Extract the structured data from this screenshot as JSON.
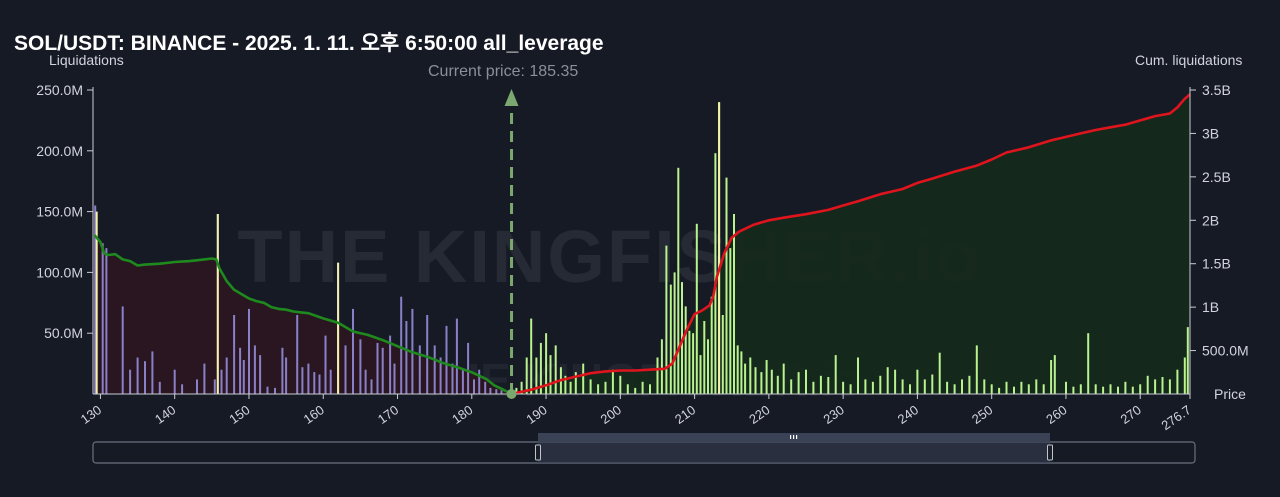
{
  "header": {
    "title": "SOL/USDT: BINANCE - 2025. 1. 11. 오후 6:50:00 all_leverage",
    "left_axis_title": "Liquidations",
    "right_axis_title": "Cum. liquidations",
    "current_price_label": "Current price: 185.35",
    "price_axis_label": "Price"
  },
  "colors": {
    "background": "#161a25",
    "short_cum_line": "#e0141c",
    "long_cum_line": "#1e8a1e",
    "short_fill": "#15291b",
    "long_fill": "#2b1620",
    "short_bars": "#b9f28e",
    "long_bars": "#8a80c8",
    "highlight_bars": "#f2f2a8",
    "current_price_marker": "#7aa86e"
  },
  "watermark": "THE KINGFISHER.io",
  "chart_data": {
    "type": "bar",
    "current_price": 185.35,
    "xlim": [
      129,
      276.7
    ],
    "y_left_lim": [
      0,
      250
    ],
    "y_right_lim": [
      0,
      3.5
    ],
    "x_ticks": [
      "130",
      "140",
      "150",
      "160",
      "170",
      "180",
      "190",
      "200",
      "210",
      "220",
      "230",
      "240",
      "250",
      "260",
      "270",
      "276.7"
    ],
    "y_left_ticks": [
      "50.0M",
      "100.0M",
      "150.0M",
      "200.0M",
      "250.0M"
    ],
    "y_left_tick_values": [
      50,
      100,
      150,
      200,
      250
    ],
    "y_right_ticks": [
      "500.0M",
      "1B",
      "1.5B",
      "2B",
      "2.5B",
      "3B",
      "3.5B"
    ],
    "y_right_tick_values": [
      0.5,
      1,
      1.5,
      2,
      2.5,
      3,
      3.5
    ],
    "long_cumulative": {
      "name": "",
      "x": [
        129.2,
        130,
        130.5,
        131,
        132,
        133,
        134,
        135,
        136,
        138,
        140,
        142,
        144,
        145,
        145.6,
        146,
        147,
        148,
        149,
        150,
        151,
        152,
        153,
        154,
        155,
        156,
        157,
        158,
        160,
        162,
        164,
        166,
        168,
        170,
        172,
        174,
        176,
        178,
        180,
        182,
        183,
        184,
        185.35
      ],
      "y": [
        1.83,
        1.75,
        1.62,
        1.6,
        1.61,
        1.55,
        1.53,
        1.48,
        1.49,
        1.5,
        1.52,
        1.53,
        1.55,
        1.56,
        1.55,
        1.45,
        1.3,
        1.2,
        1.15,
        1.1,
        1.07,
        1.05,
        1.0,
        0.98,
        0.97,
        0.95,
        0.94,
        0.93,
        0.87,
        0.82,
        0.72,
        0.68,
        0.62,
        0.55,
        0.48,
        0.43,
        0.36,
        0.31,
        0.25,
        0.17,
        0.1,
        0.06,
        0.0
      ]
    },
    "short_cumulative": {
      "name": "",
      "x": [
        185.35,
        188,
        190,
        192,
        194,
        196,
        198,
        200,
        202,
        204,
        206,
        207,
        208,
        209,
        210,
        211,
        212,
        212.5,
        213,
        214,
        215,
        216,
        218,
        220,
        222,
        225,
        228,
        230,
        232,
        235,
        238,
        240,
        242,
        245,
        248,
        250,
        252,
        255,
        258,
        260,
        262,
        264,
        266,
        268,
        270,
        272,
        274,
        275,
        276,
        276.7
      ],
      "y": [
        0,
        0.05,
        0.1,
        0.16,
        0.2,
        0.24,
        0.26,
        0.27,
        0.27,
        0.28,
        0.29,
        0.35,
        0.55,
        0.75,
        0.92,
        0.96,
        1.02,
        1.12,
        1.35,
        1.62,
        1.8,
        1.87,
        1.95,
        2.0,
        2.03,
        2.07,
        2.12,
        2.17,
        2.22,
        2.3,
        2.36,
        2.43,
        2.48,
        2.56,
        2.63,
        2.7,
        2.78,
        2.84,
        2.92,
        2.96,
        3.0,
        3.04,
        3.07,
        3.1,
        3.15,
        3.2,
        3.23,
        3.3,
        3.4,
        3.45
      ]
    },
    "long_bars": [
      {
        "x": 129.3,
        "v": 155
      },
      {
        "x": 130.3,
        "v": 124
      },
      {
        "x": 130.8,
        "v": 120
      },
      {
        "x": 133,
        "v": 72
      },
      {
        "x": 134,
        "v": 20
      },
      {
        "x": 135,
        "v": 30
      },
      {
        "x": 136,
        "v": 27
      },
      {
        "x": 137,
        "v": 35
      },
      {
        "x": 138,
        "v": 10
      },
      {
        "x": 140,
        "v": 20
      },
      {
        "x": 141,
        "v": 8
      },
      {
        "x": 143,
        "v": 12
      },
      {
        "x": 144,
        "v": 25
      },
      {
        "x": 145.4,
        "v": 12
      },
      {
        "x": 145.8,
        "v": 148
      },
      {
        "x": 146.3,
        "v": 20
      },
      {
        "x": 147,
        "v": 30
      },
      {
        "x": 148,
        "v": 65
      },
      {
        "x": 148.8,
        "v": 38
      },
      {
        "x": 149.3,
        "v": 28
      },
      {
        "x": 150,
        "v": 70
      },
      {
        "x": 150.8,
        "v": 40
      },
      {
        "x": 151.5,
        "v": 32
      },
      {
        "x": 152.5,
        "v": 6
      },
      {
        "x": 153.5,
        "v": 5
      },
      {
        "x": 154.5,
        "v": 38
      },
      {
        "x": 155,
        "v": 30
      },
      {
        "x": 156.5,
        "v": 65
      },
      {
        "x": 157.2,
        "v": 22
      },
      {
        "x": 158,
        "v": 25
      },
      {
        "x": 158.8,
        "v": 18
      },
      {
        "x": 159.5,
        "v": 16
      },
      {
        "x": 160.3,
        "v": 48
      },
      {
        "x": 161,
        "v": 20
      },
      {
        "x": 162,
        "v": 108
      },
      {
        "x": 163,
        "v": 40
      },
      {
        "x": 164,
        "v": 70
      },
      {
        "x": 165,
        "v": 45
      },
      {
        "x": 165.7,
        "v": 20
      },
      {
        "x": 166.5,
        "v": 12
      },
      {
        "x": 167.3,
        "v": 42
      },
      {
        "x": 168,
        "v": 38
      },
      {
        "x": 169,
        "v": 48
      },
      {
        "x": 169.6,
        "v": 25
      },
      {
        "x": 170.5,
        "v": 80
      },
      {
        "x": 171.2,
        "v": 60
      },
      {
        "x": 172,
        "v": 70
      },
      {
        "x": 173,
        "v": 40
      },
      {
        "x": 174,
        "v": 65
      },
      {
        "x": 175,
        "v": 40
      },
      {
        "x": 175.8,
        "v": 30
      },
      {
        "x": 176.6,
        "v": 56
      },
      {
        "x": 177.4,
        "v": 25
      },
      {
        "x": 178,
        "v": 62
      },
      {
        "x": 178.8,
        "v": 20
      },
      {
        "x": 179.5,
        "v": 42
      },
      {
        "x": 180.3,
        "v": 12
      },
      {
        "x": 181,
        "v": 20
      },
      {
        "x": 181.8,
        "v": 10
      },
      {
        "x": 182.5,
        "v": 5
      },
      {
        "x": 183.3,
        "v": 4
      },
      {
        "x": 184,
        "v": 3
      }
    ],
    "short_bars": [
      {
        "x": 186,
        "v": 5
      },
      {
        "x": 186.7,
        "v": 10
      },
      {
        "x": 187.4,
        "v": 30
      },
      {
        "x": 188,
        "v": 62
      },
      {
        "x": 188.7,
        "v": 30
      },
      {
        "x": 189.3,
        "v": 42
      },
      {
        "x": 190,
        "v": 50
      },
      {
        "x": 190.6,
        "v": 32
      },
      {
        "x": 191.3,
        "v": 40
      },
      {
        "x": 192,
        "v": 22
      },
      {
        "x": 192.6,
        "v": 15
      },
      {
        "x": 193.3,
        "v": 10
      },
      {
        "x": 194,
        "v": 18
      },
      {
        "x": 195,
        "v": 25
      },
      {
        "x": 196,
        "v": 12
      },
      {
        "x": 197,
        "v": 8
      },
      {
        "x": 198,
        "v": 10
      },
      {
        "x": 199,
        "v": 20
      },
      {
        "x": 200,
        "v": 15
      },
      {
        "x": 201,
        "v": 8
      },
      {
        "x": 202,
        "v": 5
      },
      {
        "x": 203,
        "v": 10
      },
      {
        "x": 204,
        "v": 8
      },
      {
        "x": 205,
        "v": 30
      },
      {
        "x": 205.6,
        "v": 45
      },
      {
        "x": 206.2,
        "v": 122
      },
      {
        "x": 206.8,
        "v": 90
      },
      {
        "x": 207.3,
        "v": 100
      },
      {
        "x": 207.8,
        "v": 186
      },
      {
        "x": 208.3,
        "v": 92
      },
      {
        "x": 208.8,
        "v": 72
      },
      {
        "x": 209.3,
        "v": 52
      },
      {
        "x": 209.8,
        "v": 50
      },
      {
        "x": 210.3,
        "v": 140
      },
      {
        "x": 210.8,
        "v": 32
      },
      {
        "x": 211.3,
        "v": 60
      },
      {
        "x": 211.8,
        "v": 45
      },
      {
        "x": 212.3,
        "v": 80
      },
      {
        "x": 212.8,
        "v": 198
      },
      {
        "x": 213.3,
        "v": 240
      },
      {
        "x": 213.8,
        "v": 65
      },
      {
        "x": 214.3,
        "v": 178
      },
      {
        "x": 214.8,
        "v": 120
      },
      {
        "x": 215.3,
        "v": 148
      },
      {
        "x": 215.8,
        "v": 40
      },
      {
        "x": 216.3,
        "v": 35
      },
      {
        "x": 216.8,
        "v": 25
      },
      {
        "x": 217.5,
        "v": 30
      },
      {
        "x": 218.2,
        "v": 22
      },
      {
        "x": 219,
        "v": 18
      },
      {
        "x": 219.7,
        "v": 28
      },
      {
        "x": 220.4,
        "v": 20
      },
      {
        "x": 221.2,
        "v": 15
      },
      {
        "x": 222,
        "v": 25
      },
      {
        "x": 223,
        "v": 12
      },
      {
        "x": 224,
        "v": 18
      },
      {
        "x": 225,
        "v": 20
      },
      {
        "x": 226,
        "v": 10
      },
      {
        "x": 227,
        "v": 15
      },
      {
        "x": 228,
        "v": 14
      },
      {
        "x": 229,
        "v": 32
      },
      {
        "x": 230,
        "v": 10
      },
      {
        "x": 231,
        "v": 8
      },
      {
        "x": 232,
        "v": 30
      },
      {
        "x": 233,
        "v": 12
      },
      {
        "x": 234,
        "v": 10
      },
      {
        "x": 235,
        "v": 15
      },
      {
        "x": 236,
        "v": 22
      },
      {
        "x": 237,
        "v": 20
      },
      {
        "x": 238,
        "v": 12
      },
      {
        "x": 239,
        "v": 8
      },
      {
        "x": 240,
        "v": 20
      },
      {
        "x": 241,
        "v": 12
      },
      {
        "x": 242,
        "v": 16
      },
      {
        "x": 243,
        "v": 34
      },
      {
        "x": 244,
        "v": 10
      },
      {
        "x": 245,
        "v": 8
      },
      {
        "x": 246,
        "v": 12
      },
      {
        "x": 247,
        "v": 15
      },
      {
        "x": 248,
        "v": 40
      },
      {
        "x": 249,
        "v": 12
      },
      {
        "x": 250,
        "v": 8
      },
      {
        "x": 251,
        "v": 5
      },
      {
        "x": 252,
        "v": 10
      },
      {
        "x": 253,
        "v": 6
      },
      {
        "x": 254,
        "v": 10
      },
      {
        "x": 255,
        "v": 8
      },
      {
        "x": 256,
        "v": 12
      },
      {
        "x": 257,
        "v": 8
      },
      {
        "x": 258,
        "v": 28
      },
      {
        "x": 258.5,
        "v": 32
      },
      {
        "x": 260,
        "v": 10
      },
      {
        "x": 261,
        "v": 6
      },
      {
        "x": 262,
        "v": 8
      },
      {
        "x": 263,
        "v": 50
      },
      {
        "x": 264,
        "v": 8
      },
      {
        "x": 265,
        "v": 6
      },
      {
        "x": 266,
        "v": 8
      },
      {
        "x": 267,
        "v": 6
      },
      {
        "x": 268,
        "v": 10
      },
      {
        "x": 269,
        "v": 6
      },
      {
        "x": 270,
        "v": 8
      },
      {
        "x": 271,
        "v": 15
      },
      {
        "x": 272,
        "v": 12
      },
      {
        "x": 273,
        "v": 14
      },
      {
        "x": 274,
        "v": 12
      },
      {
        "x": 275,
        "v": 20
      },
      {
        "x": 276,
        "v": 30
      },
      {
        "x": 276.4,
        "v": 55
      }
    ],
    "highlight_bars": [
      {
        "x": 129.5,
        "v": 150
      },
      {
        "x": 145.8,
        "v": 148
      },
      {
        "x": 162,
        "v": 108
      },
      {
        "x": 213.3,
        "v": 240
      }
    ]
  }
}
